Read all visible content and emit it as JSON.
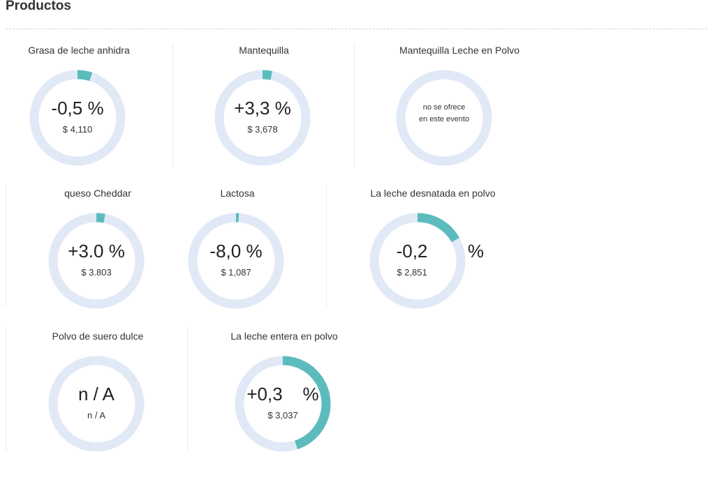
{
  "header": {
    "title": "Productos"
  },
  "colors": {
    "track": "#e1e9f7",
    "fill": "#5cbcbd"
  },
  "products": [
    {
      "name": "Grasa de leche anhidra",
      "change": "-0,5  %",
      "price": "$ 4,110",
      "fill_fraction": 0.05
    },
    {
      "name": "Mantequilla",
      "change": "+3,3 %",
      "price": "$ 3,678",
      "fill_fraction": 0.033
    },
    {
      "name": "Mantequilla Leche en Polvo",
      "note_line1": "no se ofrece",
      "note_line2": "en este evento",
      "fill_fraction": 0
    },
    {
      "name": "queso Cheddar",
      "change": "+3.0 %",
      "price": "$ 3.803",
      "fill_fraction": 0.03
    },
    {
      "name": "Lactosa",
      "change": "-8,0 %",
      "price": "$ 1,087",
      "fill_fraction": 0.01
    },
    {
      "name": "La leche desnatada en polvo",
      "change": "-0,2",
      "change_suffix": "%",
      "price": "$ 2,851",
      "fill_fraction": 0.17
    },
    {
      "name": "Polvo de suero dulce",
      "change": "n / A",
      "price": "n / A",
      "fill_fraction": 0
    },
    {
      "name": "La leche entera en polvo",
      "change": "+0,3    %",
      "price": "$ 3,037",
      "fill_fraction": 0.45
    }
  ]
}
